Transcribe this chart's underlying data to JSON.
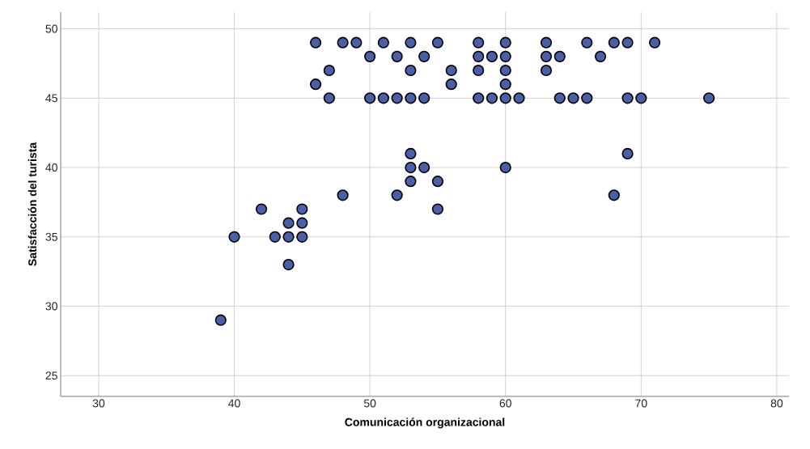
{
  "chart_data": {
    "type": "scatter",
    "xlabel": "Comunicación organizacional",
    "ylabel": "Satisfacción del turista",
    "x": [
      46,
      48,
      49,
      51,
      53,
      55,
      58,
      60,
      63,
      66,
      68,
      69,
      71,
      50,
      52,
      54,
      58,
      59,
      60,
      63,
      64,
      67,
      47,
      53,
      56,
      58,
      60,
      63,
      46,
      56,
      60,
      47,
      50,
      51,
      52,
      53,
      54,
      58,
      59,
      60,
      61,
      64,
      65,
      66,
      69,
      70,
      75,
      53,
      69,
      53,
      54,
      60,
      53,
      55,
      48,
      52,
      68,
      42,
      45,
      55,
      44,
      45,
      40,
      43,
      44,
      45,
      44,
      39
    ],
    "values": [
      49,
      49,
      49,
      49,
      49,
      49,
      49,
      49,
      49,
      49,
      49,
      49,
      49,
      48,
      48,
      48,
      48,
      48,
      48,
      48,
      48,
      48,
      47,
      47,
      47,
      47,
      47,
      47,
      46,
      46,
      46,
      45,
      45,
      45,
      45,
      45,
      45,
      45,
      45,
      45,
      45,
      45,
      45,
      45,
      45,
      45,
      45,
      41,
      41,
      40,
      40,
      40,
      39,
      39,
      38,
      38,
      38,
      37,
      37,
      37,
      36,
      36,
      35,
      35,
      35,
      35,
      33,
      29
    ],
    "color": "#4a5fa8",
    "marker": "circle",
    "grid": true,
    "xlim": [
      27.2,
      80.9
    ],
    "ylim": [
      23.5,
      51.2
    ],
    "xticks": [
      30,
      40,
      50,
      60,
      70,
      80
    ],
    "yticks": [
      25,
      30,
      35,
      40,
      45,
      50
    ]
  }
}
